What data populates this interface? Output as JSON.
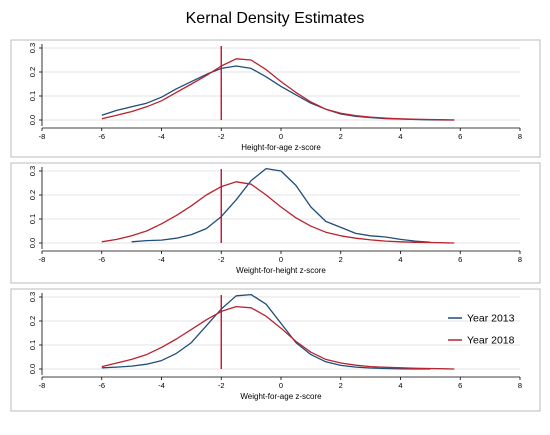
{
  "title": "Kernal Density Estimates",
  "colors": {
    "series_2013": "#1f4e79",
    "series_2018": "#b8232f",
    "reference_line": "#c8102e",
    "gridline": "#e3e3e3",
    "panel_border": "#bbbbbb"
  },
  "legend": {
    "position": "right of bottom panel",
    "items": [
      "Year 2013",
      "Year 2018"
    ]
  },
  "chart_data": [
    {
      "type": "line",
      "xlabel": "Height-for-age z-score",
      "xlim": [
        -8,
        8
      ],
      "ylim": [
        0,
        0.3
      ],
      "xticks": [
        -8,
        -6,
        -4,
        -2,
        0,
        2,
        4,
        6,
        8
      ],
      "yticks": [
        0,
        0.1,
        0.2,
        0.3
      ],
      "reference_x": -2,
      "grid": true,
      "series": [
        {
          "name": "Year 2013",
          "x": [
            -6,
            -5.5,
            -5,
            -4.5,
            -4,
            -3.5,
            -3,
            -2.5,
            -2,
            -1.5,
            -1,
            -0.5,
            0,
            0.5,
            1,
            1.5,
            2,
            2.5,
            3,
            3.5,
            4,
            4.5,
            5,
            5.5,
            5.8
          ],
          "y": [
            0.02,
            0.04,
            0.055,
            0.07,
            0.095,
            0.13,
            0.16,
            0.19,
            0.215,
            0.225,
            0.215,
            0.18,
            0.14,
            0.105,
            0.07,
            0.045,
            0.025,
            0.015,
            0.01,
            0.006,
            0.004,
            0.002,
            0.001,
            0.0,
            0.0
          ]
        },
        {
          "name": "Year 2018",
          "x": [
            -6,
            -5.5,
            -5,
            -4.5,
            -4,
            -3.5,
            -3,
            -2.5,
            -2,
            -1.5,
            -1,
            -0.5,
            0,
            0.5,
            1,
            1.5,
            2,
            2.5,
            3,
            3.5,
            4,
            4.5,
            5,
            5.5,
            5.8
          ],
          "y": [
            0.005,
            0.02,
            0.035,
            0.055,
            0.08,
            0.115,
            0.15,
            0.185,
            0.225,
            0.255,
            0.25,
            0.21,
            0.16,
            0.115,
            0.075,
            0.045,
            0.028,
            0.018,
            0.012,
            0.008,
            0.005,
            0.003,
            0.002,
            0.001,
            0.0
          ]
        }
      ]
    },
    {
      "type": "line",
      "xlabel": "Weight-for-height z-score",
      "xlim": [
        -8,
        8
      ],
      "ylim": [
        0,
        0.3
      ],
      "xticks": [
        -8,
        -6,
        -4,
        -2,
        0,
        2,
        4,
        6,
        8
      ],
      "yticks": [
        0,
        0.1,
        0.2,
        0.3
      ],
      "reference_x": -2,
      "grid": true,
      "series": [
        {
          "name": "Year 2013",
          "x": [
            -5,
            -4.5,
            -4,
            -3.5,
            -3,
            -2.5,
            -2,
            -1.5,
            -1,
            -0.5,
            0,
            0.5,
            1,
            1.5,
            2,
            2.5,
            3,
            3.5,
            4,
            4.5,
            5
          ],
          "y": [
            0.005,
            0.01,
            0.012,
            0.02,
            0.035,
            0.06,
            0.11,
            0.18,
            0.26,
            0.31,
            0.3,
            0.24,
            0.15,
            0.09,
            0.065,
            0.04,
            0.03,
            0.025,
            0.015,
            0.008,
            0.003
          ]
        },
        {
          "name": "Year 2018",
          "x": [
            -6,
            -5.5,
            -5,
            -4.5,
            -4,
            -3.5,
            -3,
            -2.5,
            -2,
            -1.5,
            -1,
            -0.5,
            0,
            0.5,
            1,
            1.5,
            2,
            2.5,
            3,
            3.5,
            4,
            4.5,
            5,
            5.5,
            5.8
          ],
          "y": [
            0.005,
            0.015,
            0.03,
            0.05,
            0.08,
            0.115,
            0.155,
            0.2,
            0.235,
            0.255,
            0.245,
            0.2,
            0.15,
            0.105,
            0.07,
            0.045,
            0.03,
            0.02,
            0.013,
            0.008,
            0.005,
            0.003,
            0.002,
            0.001,
            0.0
          ]
        }
      ]
    },
    {
      "type": "line",
      "xlabel": "Weight-for-age z-score",
      "xlim": [
        -8,
        8
      ],
      "ylim": [
        0,
        0.3
      ],
      "xticks": [
        -8,
        -6,
        -4,
        -2,
        0,
        2,
        4,
        6,
        8
      ],
      "yticks": [
        0,
        0.1,
        0.2,
        0.3
      ],
      "reference_x": -2,
      "grid": true,
      "series": [
        {
          "name": "Year 2013",
          "x": [
            -6,
            -5.5,
            -5,
            -4.5,
            -4,
            -3.5,
            -3,
            -2.5,
            -2,
            -1.5,
            -1,
            -0.5,
            0,
            0.5,
            1,
            1.5,
            2,
            2.5,
            3,
            3.5,
            4,
            4.5,
            5
          ],
          "y": [
            0.005,
            0.008,
            0.012,
            0.02,
            0.035,
            0.065,
            0.11,
            0.18,
            0.25,
            0.305,
            0.31,
            0.27,
            0.19,
            0.11,
            0.06,
            0.03,
            0.015,
            0.008,
            0.004,
            0.002,
            0.001,
            0.0,
            0.0
          ]
        },
        {
          "name": "Year 2018",
          "x": [
            -6,
            -5.5,
            -5,
            -4.5,
            -4,
            -3.5,
            -3,
            -2.5,
            -2,
            -1.5,
            -1,
            -0.5,
            0,
            0.5,
            1,
            1.5,
            2,
            2.5,
            3,
            3.5,
            4,
            4.5,
            5,
            5.5,
            5.8
          ],
          "y": [
            0.01,
            0.025,
            0.04,
            0.06,
            0.09,
            0.125,
            0.165,
            0.205,
            0.24,
            0.26,
            0.255,
            0.22,
            0.17,
            0.115,
            0.07,
            0.04,
            0.025,
            0.016,
            0.01,
            0.007,
            0.005,
            0.003,
            0.002,
            0.001,
            0.0
          ]
        }
      ]
    }
  ]
}
